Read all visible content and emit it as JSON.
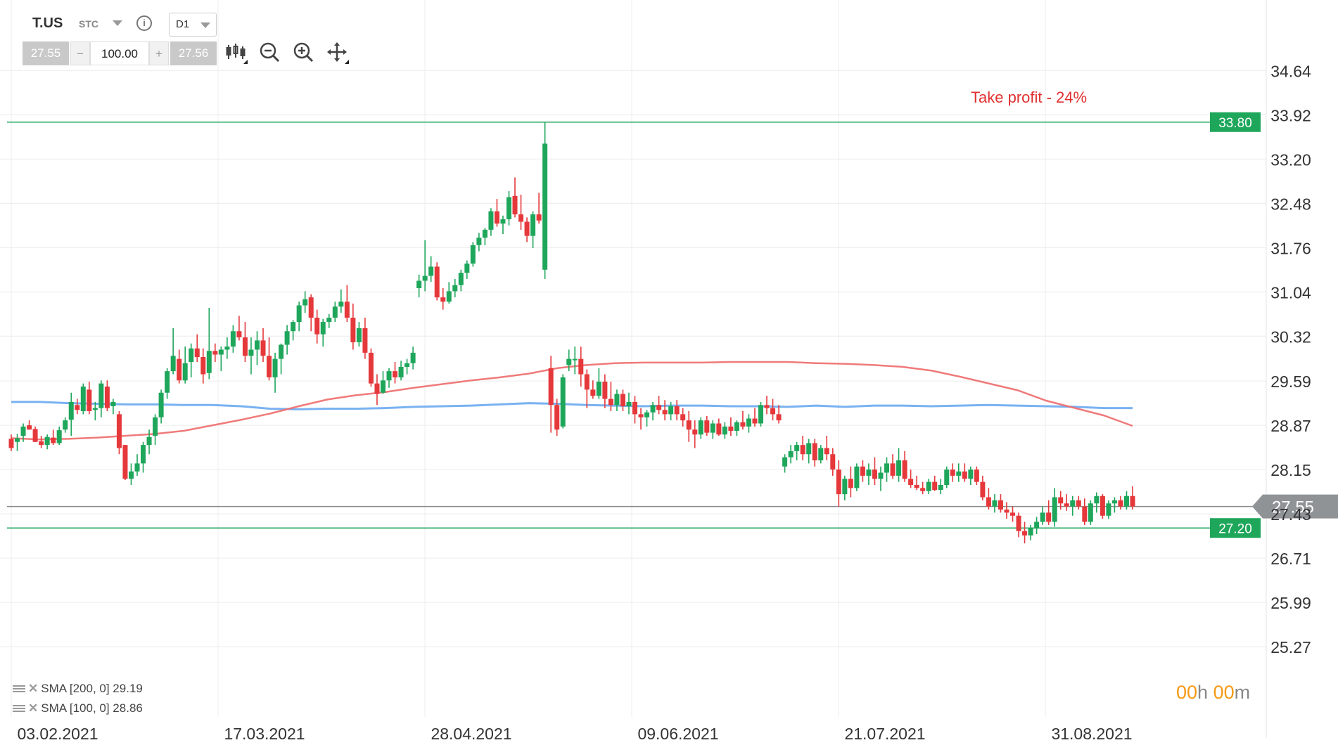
{
  "header": {
    "symbol": "T.US",
    "symbol_type": "STC",
    "timeframe": "D1",
    "bid": "27.55",
    "ask": "27.56",
    "volume": "100.00",
    "minus": "−",
    "plus": "+",
    "info": "i"
  },
  "legend": [
    {
      "label": "SMA [200, 0] 29.19",
      "color": "#6aaaf0"
    },
    {
      "label": "SMA [100, 0] 28.86",
      "color": "#ee6b6b"
    }
  ],
  "timer": {
    "h": "00",
    "h_unit": "h",
    "m": "00",
    "m_unit": "m"
  },
  "colors": {
    "up": "#1ea65b",
    "down": "#e5383b",
    "level": "#1ea65b",
    "current": "#888888",
    "annotation": "#e03030"
  },
  "chart_data": {
    "type": "candlestick",
    "ylim": [
      25.1,
      35.1
    ],
    "y_ticks": [
      "34.64",
      "33.92",
      "33.20",
      "32.48",
      "31.76",
      "31.04",
      "30.32",
      "29.59",
      "28.87",
      "28.15",
      "27.43",
      "26.71",
      "25.99",
      "25.27"
    ],
    "x_ticks": [
      "03.02.2021",
      "17.03.2021",
      "28.04.2021",
      "09.06.2021",
      "21.07.2021",
      "31.08.2021"
    ],
    "levels": [
      {
        "label": "33.80",
        "value": 33.8
      },
      {
        "label": "27.20",
        "value": 27.2
      }
    ],
    "current_price": {
      "label": "27.55",
      "value": 27.55
    },
    "annotation": "Take profit - 24%",
    "sma_200": [
      29.25,
      29.25,
      29.23,
      29.22,
      29.21,
      29.21,
      29.2,
      29.2,
      29.18,
      29.14,
      29.13,
      29.14,
      29.14,
      29.15,
      29.17,
      29.18,
      29.19,
      29.21,
      29.23,
      29.22,
      29.2,
      29.19,
      29.18,
      29.19,
      29.19,
      29.18,
      29.18,
      29.17,
      29.19,
      29.17,
      29.19,
      29.19,
      29.18,
      29.19,
      29.2,
      29.19,
      29.18,
      29.17,
      29.15,
      29.15
    ],
    "sma_100": [
      28.66,
      28.64,
      28.65,
      28.67,
      28.7,
      28.73,
      28.78,
      28.87,
      28.96,
      29.06,
      29.18,
      29.29,
      29.36,
      29.41,
      29.48,
      29.54,
      29.6,
      29.65,
      29.71,
      29.8,
      29.85,
      29.88,
      29.89,
      29.89,
      29.89,
      29.9,
      29.9,
      29.9,
      29.88,
      29.87,
      29.85,
      29.82,
      29.76,
      29.66,
      29.55,
      29.44,
      29.27,
      29.15,
      29.03,
      28.86
    ],
    "candles": [
      [
        28.65,
        28.72,
        28.45,
        28.5
      ],
      [
        28.6,
        28.73,
        28.45,
        28.66
      ],
      [
        28.7,
        28.9,
        28.6,
        28.85
      ],
      [
        28.87,
        28.95,
        28.8,
        28.8
      ],
      [
        28.81,
        28.85,
        28.6,
        28.6
      ],
      [
        28.61,
        28.7,
        28.5,
        28.55
      ],
      [
        28.55,
        28.72,
        28.48,
        28.68
      ],
      [
        28.67,
        28.8,
        28.55,
        28.58
      ],
      [
        28.58,
        28.85,
        28.55,
        28.79
      ],
      [
        28.8,
        29.0,
        28.75,
        28.95
      ],
      [
        28.96,
        29.4,
        28.7,
        29.25
      ],
      [
        29.2,
        29.3,
        29.05,
        29.12
      ],
      [
        29.1,
        29.55,
        29.05,
        29.5
      ],
      [
        29.45,
        29.58,
        29.05,
        29.1
      ],
      [
        29.12,
        29.25,
        28.95,
        29.15
      ],
      [
        29.15,
        29.6,
        29.0,
        29.55
      ],
      [
        29.5,
        29.6,
        29.1,
        29.15
      ],
      [
        29.18,
        29.3,
        29.05,
        29.25
      ],
      [
        29.05,
        29.1,
        28.4,
        28.5
      ],
      [
        28.55,
        28.55,
        27.98,
        28.0
      ],
      [
        28.0,
        28.25,
        27.9,
        28.12
      ],
      [
        28.12,
        28.4,
        28.05,
        28.25
      ],
      [
        28.25,
        28.6,
        28.1,
        28.55
      ],
      [
        28.55,
        28.8,
        28.4,
        28.68
      ],
      [
        28.7,
        29.05,
        28.55,
        29.0
      ],
      [
        29.0,
        29.45,
        28.9,
        29.4
      ],
      [
        29.4,
        29.8,
        29.3,
        29.75
      ],
      [
        29.75,
        30.45,
        29.7,
        30.0
      ],
      [
        29.95,
        30.1,
        29.55,
        29.6
      ],
      [
        29.6,
        30.15,
        29.55,
        29.88
      ],
      [
        29.9,
        30.2,
        29.65,
        30.12
      ],
      [
        30.12,
        30.35,
        29.9,
        29.98
      ],
      [
        29.98,
        30.12,
        29.55,
        29.7
      ],
      [
        29.72,
        30.78,
        29.62,
        30.08
      ],
      [
        30.08,
        30.2,
        29.9,
        30.02
      ],
      [
        30.02,
        30.15,
        29.75,
        30.1
      ],
      [
        30.1,
        30.3,
        29.95,
        30.15
      ],
      [
        30.15,
        30.5,
        30.05,
        30.4
      ],
      [
        30.4,
        30.65,
        30.25,
        30.3
      ],
      [
        30.3,
        30.55,
        29.9,
        30.0
      ],
      [
        30.0,
        30.3,
        29.7,
        30.1
      ],
      [
        30.1,
        30.4,
        29.85,
        30.25
      ],
      [
        30.25,
        30.45,
        29.9,
        30.0
      ],
      [
        30.0,
        30.3,
        29.6,
        29.65
      ],
      [
        29.65,
        30.05,
        29.4,
        29.95
      ],
      [
        29.95,
        30.2,
        29.7,
        30.18
      ],
      [
        30.18,
        30.5,
        30.02,
        30.4
      ],
      [
        30.4,
        30.58,
        30.25,
        30.55
      ],
      [
        30.55,
        30.88,
        30.4,
        30.82
      ],
      [
        30.82,
        31.05,
        30.7,
        30.92
      ],
      [
        30.95,
        31.0,
        30.4,
        30.62
      ],
      [
        30.62,
        30.75,
        30.2,
        30.35
      ],
      [
        30.35,
        30.6,
        30.15,
        30.55
      ],
      [
        30.55,
        30.68,
        30.45,
        30.62
      ],
      [
        30.62,
        30.88,
        30.55,
        30.8
      ],
      [
        30.8,
        31.08,
        30.7,
        30.88
      ],
      [
        30.88,
        31.15,
        30.55,
        30.62
      ],
      [
        30.62,
        30.85,
        30.1,
        30.22
      ],
      [
        30.22,
        30.55,
        30.15,
        30.45
      ],
      [
        30.45,
        30.62,
        29.95,
        30.05
      ],
      [
        30.05,
        30.12,
        29.5,
        29.55
      ],
      [
        29.55,
        29.7,
        29.2,
        29.38
      ],
      [
        29.4,
        29.75,
        29.38,
        29.6
      ],
      [
        29.6,
        29.8,
        29.48,
        29.75
      ],
      [
        29.75,
        29.9,
        29.55,
        29.65
      ],
      [
        29.65,
        29.92,
        29.6,
        29.82
      ],
      [
        29.82,
        29.95,
        29.7,
        29.88
      ],
      [
        29.88,
        30.15,
        29.78,
        30.05
      ],
      [
        31.1,
        31.32,
        30.95,
        31.22
      ],
      [
        31.22,
        31.88,
        31.05,
        31.3
      ],
      [
        31.3,
        31.62,
        31.2,
        31.45
      ],
      [
        31.45,
        31.52,
        30.9,
        30.95
      ],
      [
        30.95,
        31.1,
        30.75,
        30.88
      ],
      [
        30.88,
        31.2,
        30.85,
        31.05
      ],
      [
        31.05,
        31.25,
        30.95,
        31.15
      ],
      [
        31.15,
        31.4,
        31.05,
        31.35
      ],
      [
        31.35,
        31.55,
        31.25,
        31.5
      ],
      [
        31.5,
        31.85,
        31.45,
        31.8
      ],
      [
        31.8,
        32.0,
        31.7,
        31.92
      ],
      [
        31.92,
        32.08,
        31.8,
        32.05
      ],
      [
        32.05,
        32.4,
        31.95,
        32.35
      ],
      [
        32.35,
        32.55,
        32.1,
        32.15
      ],
      [
        32.15,
        32.28,
        31.98,
        32.22
      ],
      [
        32.22,
        32.68,
        32.12,
        32.58
      ],
      [
        32.6,
        32.9,
        32.25,
        32.3
      ],
      [
        32.3,
        32.62,
        32.05,
        32.18
      ],
      [
        32.18,
        32.25,
        31.85,
        31.95
      ],
      [
        31.95,
        32.35,
        31.75,
        32.3
      ],
      [
        32.3,
        32.65,
        32.15,
        32.2
      ],
      [
        31.4,
        33.8,
        31.25,
        33.45
      ],
      [
        29.8,
        30.0,
        28.75,
        29.2
      ],
      [
        29.2,
        29.3,
        28.7,
        28.8
      ],
      [
        28.85,
        29.7,
        28.82,
        29.65
      ],
      [
        29.85,
        30.1,
        29.75,
        29.95
      ],
      [
        29.95,
        30.15,
        29.7,
        29.95
      ],
      [
        29.95,
        30.15,
        29.5,
        29.7
      ],
      [
        29.7,
        29.78,
        29.15,
        29.45
      ],
      [
        29.45,
        29.6,
        29.3,
        29.35
      ],
      [
        29.35,
        29.8,
        29.3,
        29.58
      ],
      [
        29.58,
        29.7,
        29.15,
        29.3
      ],
      [
        29.3,
        29.58,
        29.1,
        29.2
      ],
      [
        29.2,
        29.45,
        29.1,
        29.38
      ],
      [
        29.38,
        29.45,
        29.1,
        29.18
      ],
      [
        29.18,
        29.4,
        29.05,
        29.25
      ],
      [
        29.25,
        29.35,
        28.9,
        29.05
      ],
      [
        29.05,
        29.15,
        28.8,
        29.0
      ],
      [
        29.0,
        29.12,
        28.85,
        29.08
      ],
      [
        29.08,
        29.25,
        28.95,
        29.2
      ],
      [
        29.2,
        29.35,
        29.05,
        29.12
      ],
      [
        29.12,
        29.28,
        28.95,
        29.05
      ],
      [
        29.05,
        29.25,
        28.95,
        29.18
      ],
      [
        29.18,
        29.28,
        28.95,
        29.05
      ],
      [
        29.05,
        29.15,
        28.85,
        28.95
      ],
      [
        28.95,
        29.1,
        28.6,
        28.8
      ],
      [
        28.8,
        28.95,
        28.5,
        28.72
      ],
      [
        28.72,
        29.0,
        28.65,
        28.95
      ],
      [
        28.95,
        29.02,
        28.7,
        28.75
      ],
      [
        28.75,
        28.95,
        28.65,
        28.9
      ],
      [
        28.9,
        28.98,
        28.7,
        28.72
      ],
      [
        28.72,
        28.92,
        28.65,
        28.85
      ],
      [
        28.85,
        29.0,
        28.7,
        28.78
      ],
      [
        28.78,
        28.95,
        28.7,
        28.92
      ],
      [
        28.92,
        29.1,
        28.8,
        28.85
      ],
      [
        28.85,
        29.05,
        28.75,
        28.98
      ],
      [
        28.98,
        29.15,
        28.85,
        28.9
      ],
      [
        28.9,
        29.25,
        28.85,
        29.2
      ],
      [
        29.2,
        29.35,
        29.05,
        29.15
      ],
      [
        29.15,
        29.3,
        28.95,
        29.05
      ],
      [
        29.05,
        29.2,
        28.9,
        28.95
      ],
      [
        28.2,
        28.4,
        28.1,
        28.35
      ],
      [
        28.35,
        28.55,
        28.25,
        28.45
      ],
      [
        28.45,
        28.6,
        28.3,
        28.55
      ],
      [
        28.55,
        28.7,
        28.3,
        28.4
      ],
      [
        28.4,
        28.65,
        28.25,
        28.58
      ],
      [
        28.58,
        28.65,
        28.2,
        28.3
      ],
      [
        28.3,
        28.55,
        28.25,
        28.5
      ],
      [
        28.5,
        28.7,
        28.3,
        28.4
      ],
      [
        28.4,
        28.5,
        28.05,
        28.15
      ],
      [
        28.15,
        28.3,
        27.55,
        27.75
      ],
      [
        27.75,
        28.05,
        27.65,
        28.0
      ],
      [
        28.0,
        28.2,
        27.7,
        27.85
      ],
      [
        27.85,
        28.25,
        27.8,
        28.2
      ],
      [
        28.2,
        28.3,
        27.95,
        28.05
      ],
      [
        28.05,
        28.25,
        27.9,
        28.15
      ],
      [
        28.15,
        28.35,
        27.9,
        28.0
      ],
      [
        28.0,
        28.2,
        27.8,
        28.1
      ],
      [
        28.1,
        28.35,
        27.95,
        28.25
      ],
      [
        28.25,
        28.4,
        28.0,
        28.05
      ],
      [
        28.05,
        28.5,
        27.95,
        28.3
      ],
      [
        28.3,
        28.45,
        27.95,
        28.0
      ],
      [
        28.0,
        28.15,
        27.85,
        27.9
      ],
      [
        27.9,
        28.05,
        27.82,
        27.85
      ],
      [
        27.85,
        27.95,
        27.75,
        27.8
      ],
      [
        27.8,
        28.0,
        27.75,
        27.95
      ],
      [
        27.95,
        28.05,
        27.8,
        27.82
      ],
      [
        27.82,
        28.0,
        27.75,
        27.9
      ],
      [
        27.9,
        28.2,
        27.85,
        28.15
      ],
      [
        28.15,
        28.25,
        27.95,
        28.05
      ],
      [
        28.05,
        28.25,
        27.95,
        28.12
      ],
      [
        28.12,
        28.25,
        27.95,
        28.0
      ],
      [
        28.0,
        28.2,
        27.9,
        28.15
      ],
      [
        28.15,
        28.2,
        27.9,
        27.95
      ],
      [
        27.95,
        28.05,
        27.65,
        27.7
      ],
      [
        27.7,
        27.85,
        27.5,
        27.55
      ],
      [
        27.55,
        27.75,
        27.45,
        27.65
      ],
      [
        27.65,
        27.75,
        27.45,
        27.5
      ],
      [
        27.5,
        27.62,
        27.35,
        27.45
      ],
      [
        27.45,
        27.55,
        27.3,
        27.4
      ],
      [
        27.4,
        27.45,
        27.05,
        27.15
      ],
      [
        27.15,
        27.3,
        26.95,
        27.08
      ],
      [
        27.08,
        27.25,
        27.0,
        27.2
      ],
      [
        27.2,
        27.38,
        27.1,
        27.3
      ],
      [
        27.3,
        27.55,
        27.25,
        27.45
      ],
      [
        27.45,
        27.65,
        27.25,
        27.3
      ],
      [
        27.3,
        27.85,
        27.22,
        27.7
      ],
      [
        27.7,
        27.8,
        27.5,
        27.6
      ],
      [
        27.6,
        27.75,
        27.48,
        27.55
      ],
      [
        27.55,
        27.72,
        27.4,
        27.65
      ],
      [
        27.65,
        27.72,
        27.5,
        27.55
      ],
      [
        27.55,
        27.68,
        27.25,
        27.3
      ],
      [
        27.3,
        27.65,
        27.25,
        27.6
      ],
      [
        27.6,
        27.78,
        27.45,
        27.72
      ],
      [
        27.72,
        27.75,
        27.35,
        27.4
      ],
      [
        27.4,
        27.65,
        27.35,
        27.6
      ],
      [
        27.6,
        27.7,
        27.45,
        27.65
      ],
      [
        27.65,
        27.72,
        27.5,
        27.55
      ],
      [
        27.55,
        27.8,
        27.5,
        27.72
      ],
      [
        27.72,
        27.88,
        27.5,
        27.55
      ]
    ]
  }
}
